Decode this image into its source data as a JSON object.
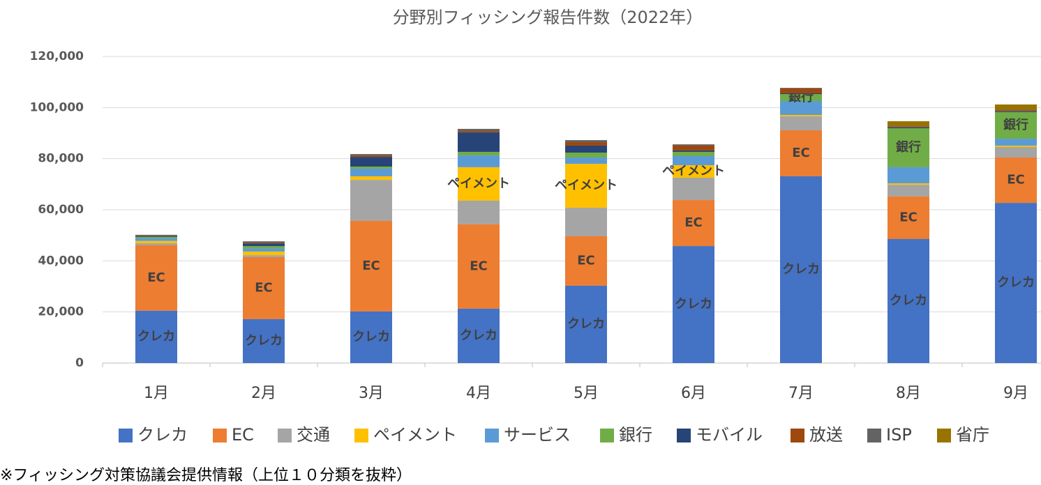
{
  "chart_data": {
    "type": "stacked_bar",
    "title": "分野別フィッシング報告件数（2022年）",
    "footnote": "※フィッシング対策協議会提供情報（上位１０分類を抜粋）",
    "categories": [
      "1月",
      "2月",
      "3月",
      "4月",
      "5月",
      "6月",
      "7月",
      "8月",
      "9月"
    ],
    "ylim": [
      0,
      120000
    ],
    "yticks": [
      0,
      {
        "value": 20000,
        "label": "20,000"
      },
      {
        "value": 40000,
        "label": "40,000"
      },
      {
        "value": 60000,
        "label": "60,000"
      },
      {
        "value": 80000,
        "label": "80,000"
      },
      {
        "value": 100000,
        "label": "100,000"
      },
      {
        "value": 120000,
        "label": "120,000"
      }
    ],
    "grid": true,
    "series": [
      {
        "name": "クレカ",
        "color": "#4472c4",
        "values": [
          20500,
          17200,
          20200,
          21300,
          30300,
          45800,
          73100,
          48550,
          62700
        ],
        "labels": [
          "クレカ",
          "クレカ",
          "クレカ",
          "クレカ",
          "クレカ",
          "クレカ",
          "クレカ",
          "クレカ",
          "クレカ"
        ]
      },
      {
        "name": "EC",
        "color": "#ed7d31",
        "values": [
          25600,
          24250,
          35450,
          33000,
          19350,
          18000,
          18000,
          16650,
          17750
        ],
        "labels": [
          "EC",
          "EC",
          "EC",
          "EC",
          "EC",
          "EC",
          "EC",
          "EC",
          "EC"
        ]
      },
      {
        "name": "交通",
        "color": "#a5a5a5",
        "values": [
          800,
          800,
          16050,
          9250,
          11150,
          8750,
          5450,
          4600,
          4100
        ]
      },
      {
        "name": "ペイメント",
        "color": "#ffc000",
        "values": [
          900,
          1400,
          1400,
          13100,
          17200,
          4900,
          550,
          550,
          550
        ],
        "labels": [
          null,
          null,
          null,
          "ペイメント",
          "ペイメント",
          "ペイメント",
          null,
          null,
          null
        ]
      },
      {
        "name": "サービス",
        "color": "#5b9bd5",
        "values": [
          1000,
          1200,
          3000,
          4600,
          2450,
          3550,
          5450,
          6300,
          2700
        ]
      },
      {
        "name": "銀行",
        "color": "#70ad47",
        "values": [
          600,
          900,
          800,
          1400,
          1900,
          1650,
          2700,
          15250,
          10400
        ],
        "labels": [
          null,
          null,
          null,
          null,
          null,
          null,
          "銀行",
          "銀行",
          "銀行"
        ]
      },
      {
        "name": "モバイル",
        "color": "#264478",
        "values": [
          400,
          1000,
          3800,
          7600,
          2750,
          550,
          300,
          300,
          250
        ]
      },
      {
        "name": "放送",
        "color": "#9e480e",
        "values": [
          200,
          300,
          600,
          550,
          1350,
          1900,
          1900,
          250,
          250
        ]
      },
      {
        "name": "ISP",
        "color": "#636363",
        "values": [
          200,
          600,
          500,
          850,
          800,
          500,
          250,
          250,
          300
        ]
      },
      {
        "name": "省庁",
        "color": "#997300",
        "values": [
          0,
          0,
          0,
          0,
          0,
          0,
          0,
          1950,
          2200
        ]
      }
    ]
  }
}
